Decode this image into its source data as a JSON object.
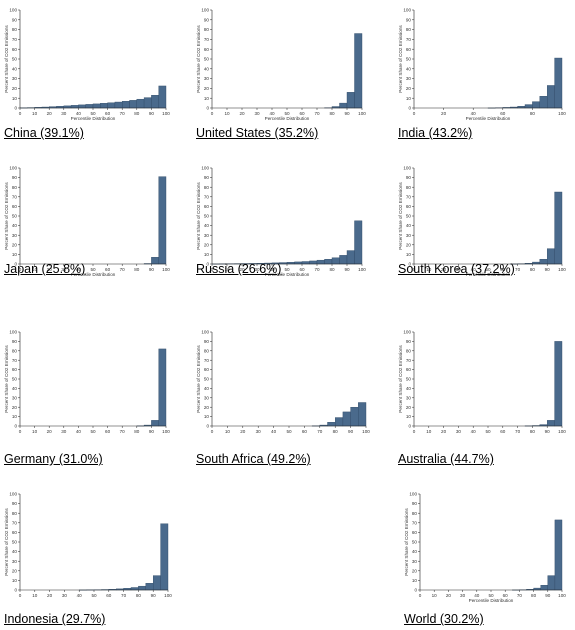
{
  "chart_data": [
    {
      "type": "bar",
      "caption": "China (39.1%)",
      "ylabel": "Percent Share of CO2 Emissions",
      "xlabel": "Percentile Distribution",
      "ylim": [
        0,
        100
      ],
      "yticks": [
        0,
        10,
        20,
        30,
        40,
        50,
        60,
        70,
        80,
        90,
        100
      ],
      "xticks": [
        0,
        10,
        20,
        30,
        40,
        50,
        60,
        70,
        80,
        90,
        100
      ],
      "x": [
        5,
        10,
        15,
        20,
        25,
        30,
        35,
        40,
        45,
        50,
        55,
        60,
        65,
        70,
        75,
        80,
        85,
        90,
        95,
        100
      ],
      "values": [
        0.2,
        0.4,
        0.7,
        1.0,
        1.4,
        1.8,
        2.2,
        2.7,
        3.2,
        3.7,
        4.2,
        4.8,
        5.4,
        6.1,
        6.9,
        7.8,
        9.0,
        10.6,
        13.0,
        22.5
      ]
    },
    {
      "type": "bar",
      "caption": "United States (35.2%)",
      "ylabel": "Percent Share of CO2 Emissions",
      "xlabel": "Percentile Distribution",
      "ylim": [
        0,
        100
      ],
      "yticks": [
        0,
        10,
        20,
        30,
        40,
        50,
        60,
        70,
        80,
        90,
        100
      ],
      "xticks": [
        0,
        10,
        20,
        30,
        40,
        50,
        60,
        70,
        80,
        90,
        100
      ],
      "x": [
        5,
        10,
        15,
        20,
        25,
        30,
        35,
        40,
        45,
        50,
        55,
        60,
        65,
        70,
        75,
        80,
        85,
        90,
        95,
        100
      ],
      "values": [
        0,
        0,
        0,
        0,
        0,
        0,
        0,
        0,
        0,
        0,
        0,
        0,
        0,
        0,
        0,
        0.3,
        1.5,
        5,
        16,
        76
      ]
    },
    {
      "type": "bar",
      "caption": "India (43.2%)",
      "ylabel": "Percent Share of CO2 Emissions",
      "xlabel": "Percentile Distribution",
      "ylim": [
        0,
        100
      ],
      "yticks": [
        0,
        10,
        20,
        30,
        40,
        50,
        60,
        70,
        80,
        90,
        100
      ],
      "xticks": [
        0,
        20,
        40,
        60,
        80,
        100
      ],
      "x": [
        5,
        10,
        15,
        20,
        25,
        30,
        35,
        40,
        45,
        50,
        55,
        60,
        65,
        70,
        75,
        80,
        85,
        90,
        95,
        100
      ],
      "values": [
        0,
        0,
        0,
        0,
        0,
        0,
        0,
        0,
        0,
        0,
        0.1,
        0.3,
        0.6,
        1.0,
        1.8,
        3.5,
        6.5,
        12,
        23,
        51
      ]
    },
    {
      "type": "bar",
      "caption": "Japan (25.8%)",
      "ylabel": "Percent Share of CO2 Emissions",
      "xlabel": "Percentile Distribution",
      "ylim": [
        0,
        100
      ],
      "yticks": [
        0,
        10,
        20,
        30,
        40,
        50,
        60,
        70,
        80,
        90,
        100
      ],
      "xticks": [
        0,
        10,
        20,
        30,
        40,
        50,
        60,
        70,
        80,
        90,
        100
      ],
      "x": [
        5,
        10,
        15,
        20,
        25,
        30,
        35,
        40,
        45,
        50,
        55,
        60,
        65,
        70,
        75,
        80,
        85,
        90,
        95,
        100
      ],
      "values": [
        0,
        0,
        0,
        0,
        0,
        0,
        0,
        0,
        0,
        0,
        0,
        0,
        0,
        0,
        0,
        0,
        0,
        0.5,
        7,
        91
      ]
    },
    {
      "type": "bar",
      "caption": "Russia (26.6%)",
      "ylabel": "Percent Share of CO2 Emissions",
      "xlabel": "Percentile Distribution",
      "ylim": [
        0,
        100
      ],
      "yticks": [
        0,
        10,
        20,
        30,
        40,
        50,
        60,
        70,
        80,
        90,
        100
      ],
      "xticks": [
        0,
        10,
        20,
        30,
        40,
        50,
        60,
        70,
        80,
        90,
        100
      ],
      "x": [
        5,
        10,
        15,
        20,
        25,
        30,
        35,
        40,
        45,
        50,
        55,
        60,
        65,
        70,
        75,
        80,
        85,
        90,
        95,
        100
      ],
      "values": [
        0.1,
        0.2,
        0.3,
        0.4,
        0.5,
        0.6,
        0.8,
        1.0,
        1.2,
        1.5,
        1.8,
        2.2,
        2.6,
        3.2,
        4.0,
        5.0,
        6.5,
        9.0,
        14.0,
        45.0
      ]
    },
    {
      "type": "bar",
      "caption": "South Korea (37.2%)",
      "ylabel": "Percent Share of CO2 Emissions",
      "xlabel": "Percentile Distribution",
      "ylim": [
        0,
        100
      ],
      "yticks": [
        0,
        10,
        20,
        30,
        40,
        50,
        60,
        70,
        80,
        90,
        100
      ],
      "xticks": [
        0,
        10,
        20,
        30,
        40,
        50,
        60,
        70,
        80,
        90,
        100
      ],
      "x": [
        5,
        10,
        15,
        20,
        25,
        30,
        35,
        40,
        45,
        50,
        55,
        60,
        65,
        70,
        75,
        80,
        85,
        90,
        95,
        100
      ],
      "values": [
        0,
        0,
        0,
        0,
        0,
        0,
        0,
        0,
        0,
        0,
        0,
        0,
        0,
        0.1,
        0.3,
        0.8,
        2,
        5,
        16,
        75
      ]
    },
    {
      "type": "bar",
      "caption": "Germany (31.0%)",
      "ylabel": "Percent Share of CO2 Emissions",
      "xlabel": "",
      "ylim": [
        0,
        100
      ],
      "yticks": [
        0,
        10,
        20,
        30,
        40,
        50,
        60,
        70,
        80,
        90,
        100
      ],
      "xticks": [
        0,
        10,
        20,
        30,
        40,
        50,
        60,
        70,
        80,
        90,
        100
      ],
      "x": [
        5,
        10,
        15,
        20,
        25,
        30,
        35,
        40,
        45,
        50,
        55,
        60,
        65,
        70,
        75,
        80,
        85,
        90,
        95,
        100
      ],
      "values": [
        0,
        0,
        0,
        0,
        0,
        0,
        0,
        0,
        0,
        0,
        0,
        0,
        0,
        0,
        0,
        0,
        0.2,
        1,
        6,
        82
      ]
    },
    {
      "type": "bar",
      "caption": "South Africa (49.2%)",
      "ylabel": "Percent Share of CO2 Emissions",
      "xlabel": "",
      "ylim": [
        0,
        100
      ],
      "yticks": [
        0,
        10,
        20,
        30,
        40,
        50,
        60,
        70,
        80,
        90,
        100
      ],
      "xticks": [
        0,
        10,
        20,
        30,
        40,
        50,
        60,
        70,
        80,
        90,
        100
      ],
      "x": [
        5,
        10,
        15,
        20,
        25,
        30,
        35,
        40,
        45,
        50,
        55,
        60,
        65,
        70,
        75,
        80,
        85,
        90,
        95,
        100
      ],
      "values": [
        0,
        0,
        0,
        0,
        0,
        0,
        0,
        0,
        0,
        0,
        0,
        0,
        0,
        0.2,
        1.0,
        4.0,
        9.0,
        15.0,
        20.0,
        25.0
      ]
    },
    {
      "type": "bar",
      "caption": "Australia (44.7%)",
      "ylabel": "Percent Share of CO2 Emissions",
      "xlabel": "",
      "ylim": [
        0,
        100
      ],
      "yticks": [
        0,
        10,
        20,
        30,
        40,
        50,
        60,
        70,
        80,
        90,
        100
      ],
      "xticks": [
        0,
        10,
        20,
        30,
        40,
        50,
        60,
        70,
        80,
        90,
        100
      ],
      "x": [
        5,
        10,
        15,
        20,
        25,
        30,
        35,
        40,
        45,
        50,
        55,
        60,
        65,
        70,
        75,
        80,
        85,
        90,
        95,
        100
      ],
      "values": [
        0,
        0,
        0,
        0,
        0,
        0,
        0,
        0,
        0,
        0,
        0,
        0,
        0,
        0,
        0,
        0.2,
        0.5,
        1.5,
        6,
        90
      ]
    },
    {
      "type": "bar",
      "caption": "Indonesia (29.7%)",
      "ylabel": "Percent Share of CO2 Emissions",
      "xlabel": "",
      "ylim": [
        0,
        100
      ],
      "yticks": [
        0,
        10,
        20,
        30,
        40,
        50,
        60,
        70,
        80,
        90,
        100
      ],
      "xticks": [
        0,
        10,
        20,
        30,
        40,
        50,
        60,
        70,
        80,
        90,
        100
      ],
      "x": [
        5,
        10,
        15,
        20,
        25,
        30,
        35,
        40,
        45,
        50,
        55,
        60,
        65,
        70,
        75,
        80,
        85,
        90,
        95,
        100
      ],
      "values": [
        0,
        0,
        0,
        0,
        0,
        0,
        0,
        0,
        0.1,
        0.2,
        0.3,
        0.5,
        0.8,
        1.2,
        1.8,
        2.6,
        4,
        7,
        15,
        69
      ]
    },
    {
      "type": "bar",
      "caption": "World (30.2%)",
      "ylabel": "Percent Share of CO2 Emissions",
      "xlabel": "Percentile Distribution",
      "ylim": [
        0,
        100
      ],
      "yticks": [
        0,
        10,
        20,
        30,
        40,
        50,
        60,
        70,
        80,
        90,
        100
      ],
      "xticks": [
        0,
        10,
        20,
        30,
        40,
        50,
        60,
        70,
        80,
        90,
        100
      ],
      "x": [
        5,
        10,
        15,
        20,
        25,
        30,
        35,
        40,
        45,
        50,
        55,
        60,
        65,
        70,
        75,
        80,
        85,
        90,
        95,
        100
      ],
      "values": [
        0,
        0,
        0,
        0,
        0,
        0,
        0,
        0,
        0,
        0,
        0,
        0,
        0,
        0.1,
        0.3,
        0.8,
        2,
        5,
        15,
        73
      ]
    }
  ],
  "colors": {
    "bar": "#4a6a8c",
    "bar_edge": "#2f4a66",
    "axis": "#222222"
  }
}
